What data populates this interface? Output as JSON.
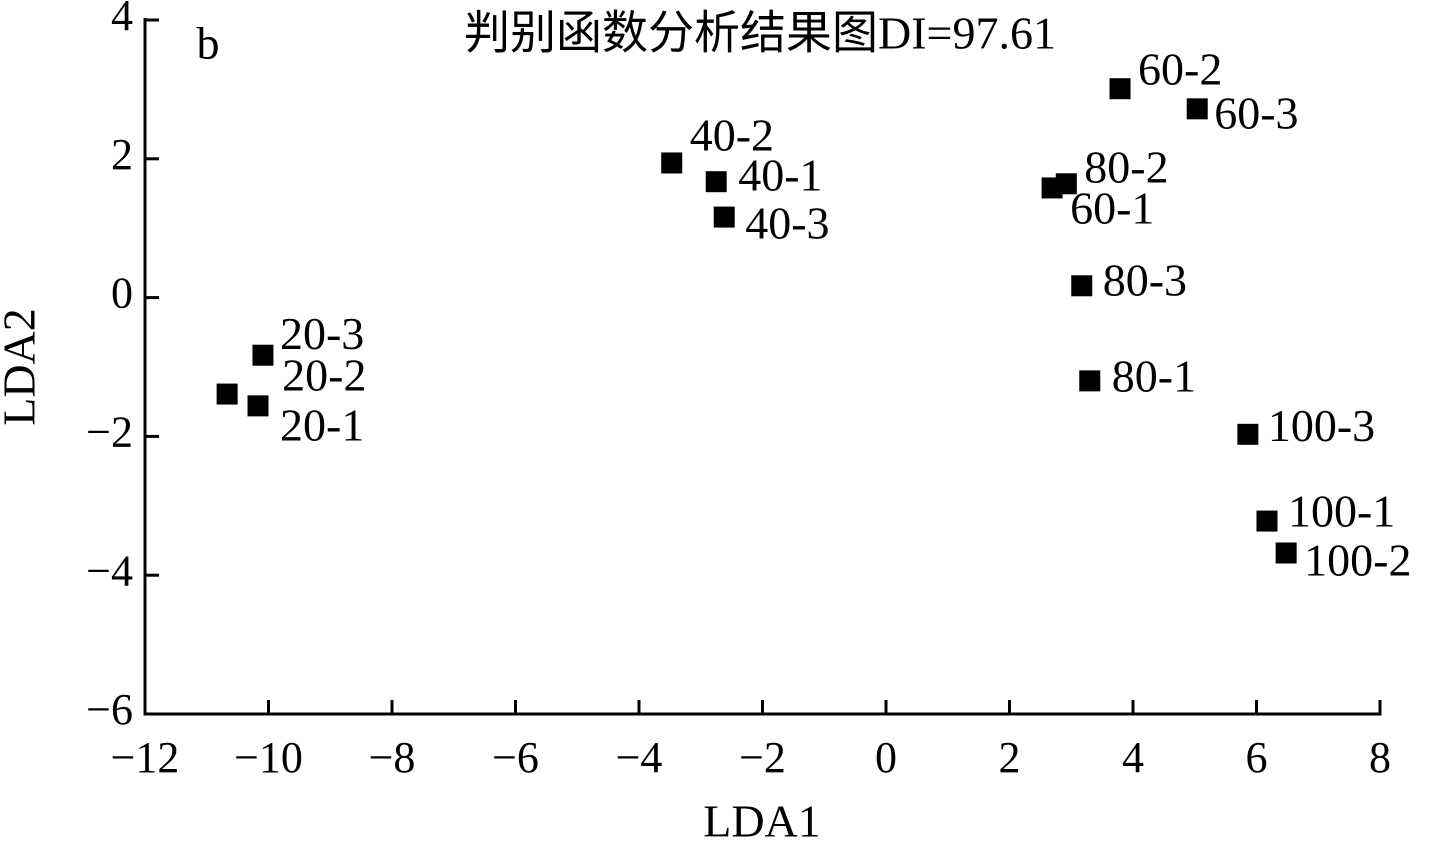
{
  "chart_data": {
    "type": "scatter",
    "title": "判别函数分析结果图DI=97.61",
    "panel_label": "b",
    "x_label": "LDA1",
    "y_label": "LDA2",
    "color": "#000000",
    "point_labels": [
      "20-3",
      "20-2",
      "20-1",
      "40-2",
      "40-1",
      "40-3",
      "60-2",
      "60-3",
      "80-2",
      "60-1",
      "80-3",
      "80-1",
      "100-3",
      "100-1",
      "100-2"
    ],
    "x": [
      -10.09,
      -10.67,
      -10.17,
      -3.47,
      -2.75,
      -2.62,
      3.79,
      5.04,
      2.92,
      2.69,
      3.17,
      3.3,
      5.86,
      6.17,
      6.48
    ],
    "y": [
      -0.83,
      -1.39,
      -1.56,
      1.94,
      1.67,
      1.16,
      3.01,
      2.72,
      1.64,
      1.58,
      0.17,
      -1.2,
      -1.97,
      -3.22,
      -3.68
    ],
    "xlim": [
      -12,
      8
    ],
    "ylim": [
      -6,
      4
    ],
    "xticks": [
      {
        "value": -12,
        "label": "−12"
      },
      {
        "value": -10,
        "label": "−10"
      },
      {
        "value": -8,
        "label": "−8"
      },
      {
        "value": -6,
        "label": "−6"
      },
      {
        "value": -4,
        "label": "−4"
      },
      {
        "value": -2,
        "label": "−2"
      },
      0,
      2,
      4,
      6,
      8
    ],
    "yticks": [
      {
        "value": -6,
        "label": "−6"
      },
      {
        "value": -4,
        "label": "−4"
      },
      {
        "value": -2,
        "label": "−2"
      },
      0,
      2,
      4
    ]
  }
}
